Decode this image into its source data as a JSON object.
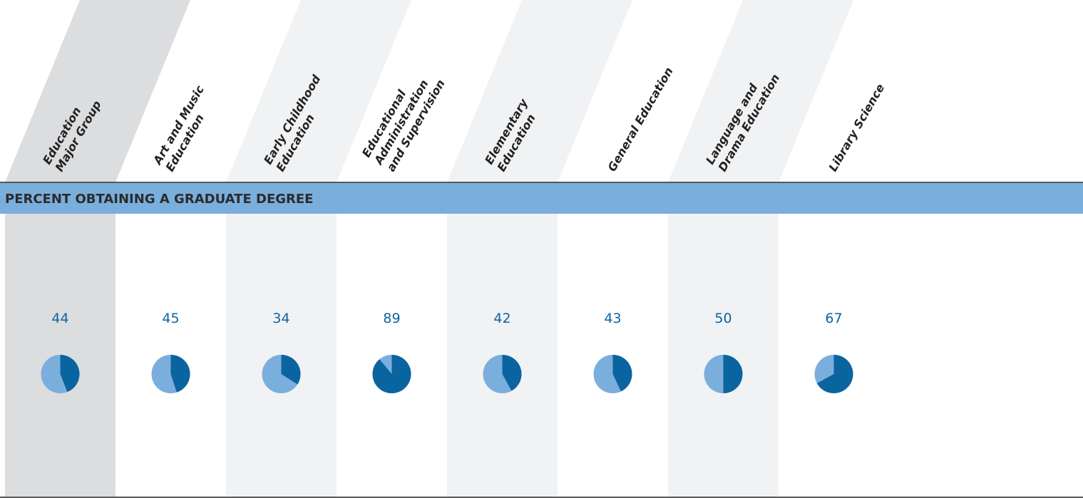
{
  "chart_data": {
    "type": "pie",
    "title": "PERCENT OBTAINING A GRADUATE DEGREE",
    "categories": [
      [
        "Education",
        "Major Group"
      ],
      [
        "Art and Music",
        "Education"
      ],
      [
        "Early Childhood",
        "Education"
      ],
      [
        "Educational",
        "Administration",
        "and Supervision"
      ],
      [
        "Elementary",
        "Education"
      ],
      [
        "General Education"
      ],
      [
        "Language and",
        "Drama Education"
      ],
      [
        "Library Science"
      ]
    ],
    "values": [
      44,
      45,
      34,
      89,
      42,
      43,
      50,
      67
    ],
    "ylim": [
      0,
      100
    ],
    "color": "#0a64a0",
    "rest_color": "#7aaedc"
  }
}
